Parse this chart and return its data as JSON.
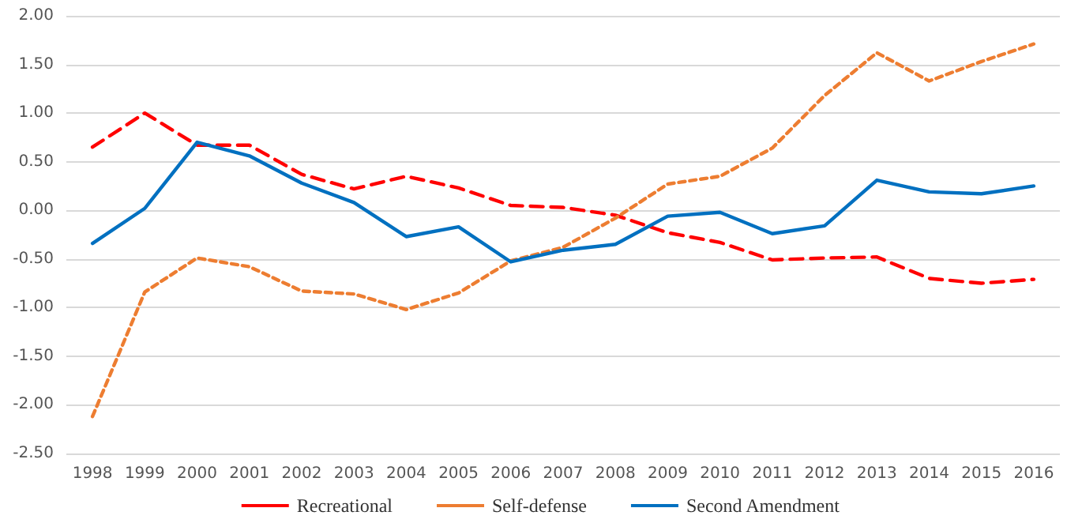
{
  "chart_data": {
    "type": "line",
    "categories": [
      "1998",
      "1999",
      "2000",
      "2001",
      "2002",
      "2003",
      "2004",
      "2005",
      "2006",
      "2007",
      "2008",
      "2009",
      "2010",
      "2011",
      "2012",
      "2013",
      "2014",
      "2015",
      "2016"
    ],
    "series": [
      {
        "name": "Recreational",
        "color": "#ff0000",
        "line_style": "dashed",
        "values": [
          0.65,
          1.0,
          0.67,
          0.67,
          0.37,
          0.22,
          0.35,
          0.23,
          0.05,
          0.03,
          -0.05,
          -0.23,
          -0.33,
          -0.51,
          -0.49,
          -0.48,
          -0.7,
          -0.75,
          -0.71
        ]
      },
      {
        "name": "Self-defense",
        "color": "#ed7d31",
        "line_style": "dotted",
        "values": [
          -2.12,
          -0.84,
          -0.49,
          -0.58,
          -0.83,
          -0.86,
          -1.02,
          -0.85,
          -0.52,
          -0.38,
          -0.08,
          0.27,
          0.35,
          0.64,
          1.18,
          1.62,
          1.33,
          1.53,
          1.71
        ]
      },
      {
        "name": "Second Amendment",
        "color": "#0070c0",
        "line_style": "solid",
        "values": [
          -0.34,
          0.02,
          0.7,
          0.56,
          0.28,
          0.08,
          -0.27,
          -0.17,
          -0.53,
          -0.41,
          -0.35,
          -0.06,
          -0.02,
          -0.24,
          -0.16,
          0.31,
          0.19,
          0.17,
          0.25
        ]
      }
    ],
    "ylim": [
      -2.5,
      2
    ],
    "yticks": [
      {
        "value": -2.5,
        "label": "-2.50"
      },
      {
        "value": -2,
        "label": "-2.00"
      },
      {
        "value": -1.5,
        "label": "-1.50"
      },
      {
        "value": -1,
        "label": "-1.00"
      },
      {
        "value": -0.5,
        "label": "-0.50"
      },
      {
        "value": 0,
        "label": "0.00"
      },
      {
        "value": 0.5,
        "label": "0.50"
      },
      {
        "value": 1,
        "label": "1.00"
      },
      {
        "value": 1.5,
        "label": "1.50"
      },
      {
        "value": 2,
        "label": "2.00"
      }
    ],
    "grid": "y",
    "legend": "bottom",
    "marker": "none"
  }
}
